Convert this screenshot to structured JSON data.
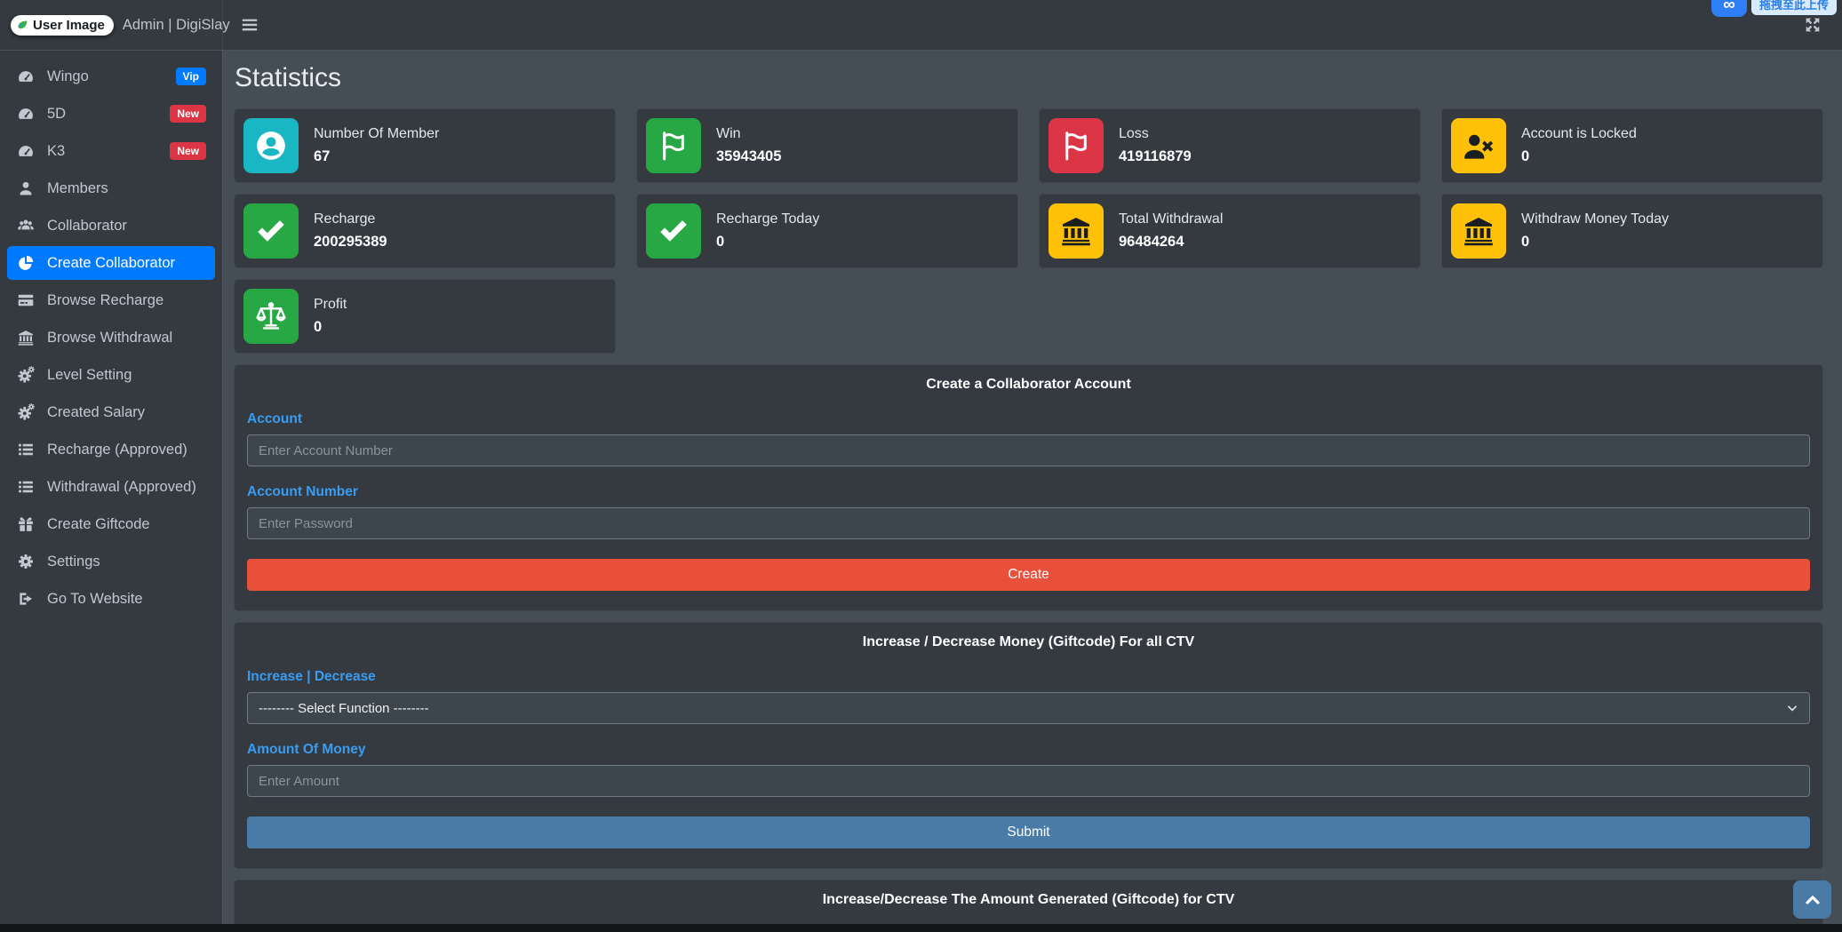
{
  "brand": {
    "logo_text": "User Image",
    "title": "Admin | DigiSlay"
  },
  "overlay": {
    "badge_glyph": "∞",
    "tooltip_text": "拖拽至此上传"
  },
  "sidebar": {
    "items": [
      {
        "label": "Wingo",
        "icon": "tachometer",
        "badge": "Vip",
        "badge_color": "#007bff",
        "active": false
      },
      {
        "label": "5D",
        "icon": "tachometer",
        "badge": "New",
        "badge_color": "#dc3545",
        "active": false
      },
      {
        "label": "K3",
        "icon": "tachometer",
        "badge": "New",
        "badge_color": "#dc3545",
        "active": false
      },
      {
        "label": "Members",
        "icon": "user",
        "active": false
      },
      {
        "label": "Collaborator",
        "icon": "users",
        "active": false
      },
      {
        "label": "Create Collaborator",
        "icon": "chart-pie",
        "active": true
      },
      {
        "label": "Browse Recharge",
        "icon": "credit-card",
        "active": false
      },
      {
        "label": "Browse Withdrawal",
        "icon": "bank",
        "active": false
      },
      {
        "label": "Level Setting",
        "icon": "cogs",
        "active": false
      },
      {
        "label": "Created Salary",
        "icon": "cogs",
        "active": false
      },
      {
        "label": "Recharge (Approved)",
        "icon": "list",
        "active": false
      },
      {
        "label": "Withdrawal (Approved)",
        "icon": "list",
        "active": false
      },
      {
        "label": "Create Giftcode",
        "icon": "gift",
        "active": false
      },
      {
        "label": "Settings",
        "icon": "cog",
        "active": false
      },
      {
        "label": "Go To Website",
        "icon": "sign-out",
        "active": false
      }
    ]
  },
  "main": {
    "page_title": "Statistics",
    "stat_cards": [
      {
        "label": "Number Of Member",
        "value": "67",
        "icon": "user-circle",
        "color": "#19b6c3",
        "glyph": "#ffffff"
      },
      {
        "label": "Win",
        "value": "35943405",
        "icon": "flag",
        "color": "#28a745",
        "glyph": "#ffffff"
      },
      {
        "label": "Loss",
        "value": "419116879",
        "icon": "flag",
        "color": "#dc3545",
        "glyph": "#ffffff"
      },
      {
        "label": "Account is Locked",
        "value": "0",
        "icon": "user-times",
        "color": "#ffc107",
        "glyph": "#1b1e21"
      },
      {
        "label": "Recharge",
        "value": "200295389",
        "icon": "check",
        "color": "#28a745",
        "glyph": "#ffffff"
      },
      {
        "label": "Recharge Today",
        "value": "0",
        "icon": "check",
        "color": "#28a745",
        "glyph": "#ffffff"
      },
      {
        "label": "Total Withdrawal",
        "value": "96484264",
        "icon": "bank",
        "color": "#ffc107",
        "glyph": "#1b1e21"
      },
      {
        "label": "Withdraw Money Today",
        "value": "0",
        "icon": "bank",
        "color": "#ffc107",
        "glyph": "#1b1e21"
      },
      {
        "label": "Profit",
        "value": "0",
        "icon": "balance",
        "color": "#28a745",
        "glyph": "#ffffff"
      }
    ],
    "forms": [
      {
        "title": "Create a Collaborator Account",
        "fields": [
          {
            "label": "Account",
            "placeholder": "Enter Account Number"
          },
          {
            "label": "Account Number",
            "placeholder": "Enter Password"
          }
        ],
        "button": {
          "label": "Create",
          "color": "#e8503c"
        }
      },
      {
        "title": "Increase / Decrease Money (Giftcode) For all CTV",
        "select_field": {
          "label": "Increase | Decrease",
          "value": "-------- Select Function --------"
        },
        "amount_field": {
          "label": "Amount Of Money",
          "placeholder": "Enter Amount"
        },
        "button": {
          "label": "Submit",
          "color": "#4a7ba6"
        }
      },
      {
        "title": "Increase/Decrease The Amount Generated (Giftcode) for CTV"
      }
    ]
  }
}
